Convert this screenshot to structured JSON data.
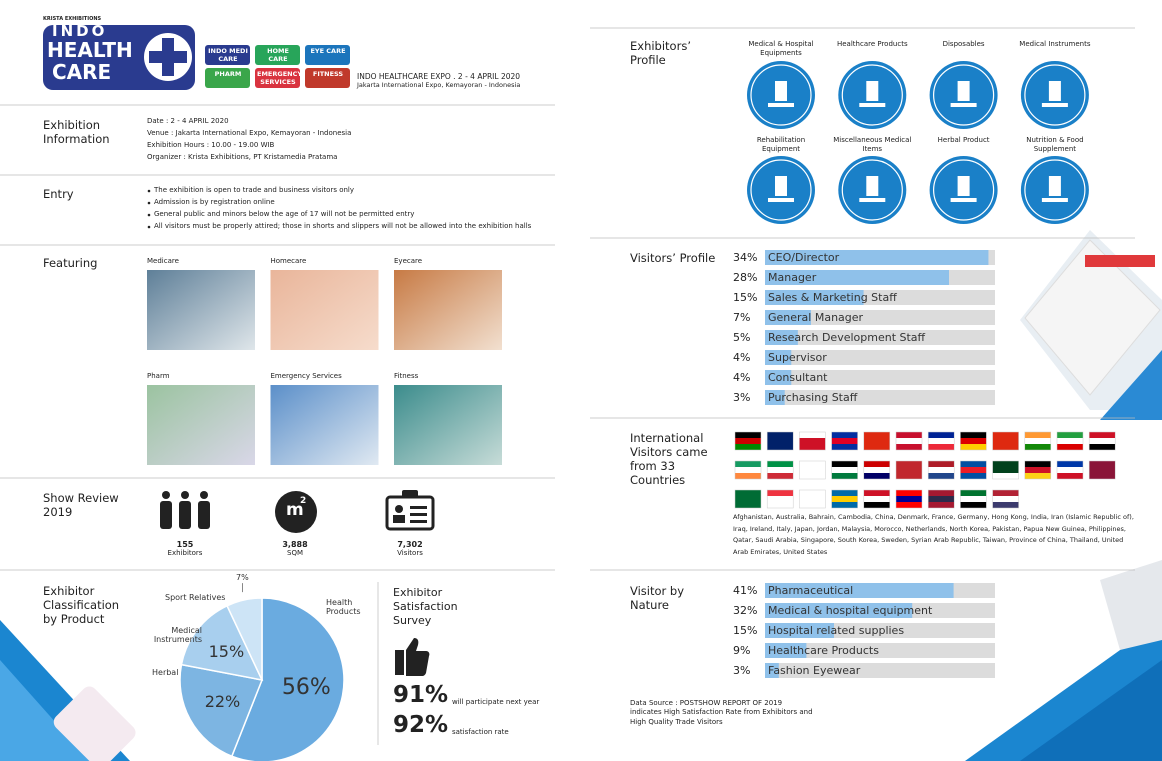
{
  "header": {
    "organizer": "KRISTA EXHIBITIONS",
    "logo_line1": "INDO",
    "logo_line2": "HEALTH",
    "logo_line3": "CARE",
    "brands": [
      "INDO MEDI CARE",
      "HOME CARE",
      "EYE CARE",
      "PHARM",
      "EMERGENCY SERVICES",
      "FITNESS"
    ],
    "event": "INDO HEALTHCARE EXPO . 2 - 4 APRIL 2020",
    "venue": "Jakarta International Expo, Kemayoran - Indonesia"
  },
  "exhibition_information": {
    "label": "Exhibition Information",
    "lines": [
      "Date : 2 - 4 APRIL 2020",
      "Venue : Jakarta International Expo, Kemayoran - Indonesia",
      "Exhibition Hours : 10.00 - 19.00 WIB",
      "Organizer : Krista Exhibitions, PT Kristamedia Pratama"
    ]
  },
  "entry": {
    "label": "Entry",
    "bullets": [
      "The exhibition is open to trade and business visitors only",
      "Admission is by registration online",
      "General public and minors below the age of 17 will not be permitted entry",
      "All visitors must be properly attired; those in shorts and slippers will not be allowed into the exhibition halls"
    ]
  },
  "featuring": {
    "label": "Featuring",
    "items": [
      "Medicare",
      "Homecare",
      "Eyecare",
      "Pharm",
      "Emergency Services",
      "Fitness"
    ]
  },
  "show_review": {
    "label": "Show Review 2019",
    "icon_unit": "m",
    "icon_power": "2",
    "stats": [
      {
        "value": "155",
        "label": "Exhibitors"
      },
      {
        "value": "3,888",
        "label": "SQM"
      },
      {
        "value": "7,302",
        "label": "Visitors"
      }
    ]
  },
  "exhibitor_classification": {
    "label": "Exhibitor Classification by Product",
    "chart": {
      "type": "pie",
      "categories": [
        "Health Products",
        "Herbal",
        "Medical Instruments",
        "Sport Relatives"
      ],
      "values": [
        56,
        22,
        15,
        7
      ],
      "value_labels": [
        "56%",
        "22%",
        "15%",
        "7%"
      ],
      "colors": [
        "#6aabe0",
        "#7db5e2",
        "#a8cfee",
        "#cde4f6"
      ]
    }
  },
  "satisfaction": {
    "title": "Exhibitor Satisfaction Survey",
    "items": [
      {
        "value_label": "91%",
        "text": "will participate next year"
      },
      {
        "value_label": "92%",
        "text": "satisfaction rate"
      }
    ]
  },
  "exhibitors_profile": {
    "label": "Exhibitors’ Profile",
    "categories": [
      "Medical & Hospital Equipments",
      "Healthcare Products",
      "Disposables",
      "Medical Instruments",
      "Rehabilitation Equipment",
      "Miscellaneous Medical Items",
      "Herbal Product",
      "Nutrition & Food Supplement"
    ]
  },
  "visitors_profile": {
    "label": "Visitors’ Profile",
    "chart": {
      "type": "bar",
      "categories": [
        "CEO/Director",
        "Manager",
        "Sales & Marketing Staff",
        "General Manager",
        "Research Development Staff",
        "Supervisor",
        "Consultant",
        "Purchasing Staff"
      ],
      "values": [
        34,
        28,
        15,
        7,
        5,
        4,
        4,
        3
      ],
      "value_labels": [
        "34%",
        "28%",
        "15%",
        "7%",
        "5%",
        "4%",
        "4%",
        "3%"
      ],
      "xlim": [
        0,
        35
      ],
      "color": "#8fc1ea"
    }
  },
  "international": {
    "label": "International Visitors came from 33 Countries",
    "countries": "Afghanistan, Australia, Bahrain, Cambodia, China, Denmark, France, Germany, Hong Kong, India, Iran (Islamic Republic of), Iraq, Ireland, Italy, Japan, Jordan, Malaysia, Morocco, Netherlands, North Korea, Pakistan, Papua New Guinea, Philippines, Qatar, Saudi Arabia, Singapore, South Korea, Sweden, Syrian Arab Republic, Taiwan, Province of China, Thailand, United Arab Emirates, United States"
  },
  "visitor_by_nature": {
    "label": "Visitor by Nature",
    "chart": {
      "type": "bar",
      "categories": [
        "Pharmaceutical",
        "Medical & hospital equipment",
        "Hospital related supplies",
        "Healthcare Products",
        "Fashion Eyewear"
      ],
      "values": [
        41,
        32,
        15,
        9,
        3
      ],
      "value_labels": [
        "41%",
        "32%",
        "15%",
        "9%",
        "3%"
      ],
      "xlim": [
        0,
        50
      ],
      "color": "#8fc1ea"
    }
  },
  "footer": {
    "source": "Data Source : POSTSHOW REPORT OF 2019",
    "note": "indicates High Satisfaction Rate from Exhibitors and High Quality Trade Visitors"
  }
}
